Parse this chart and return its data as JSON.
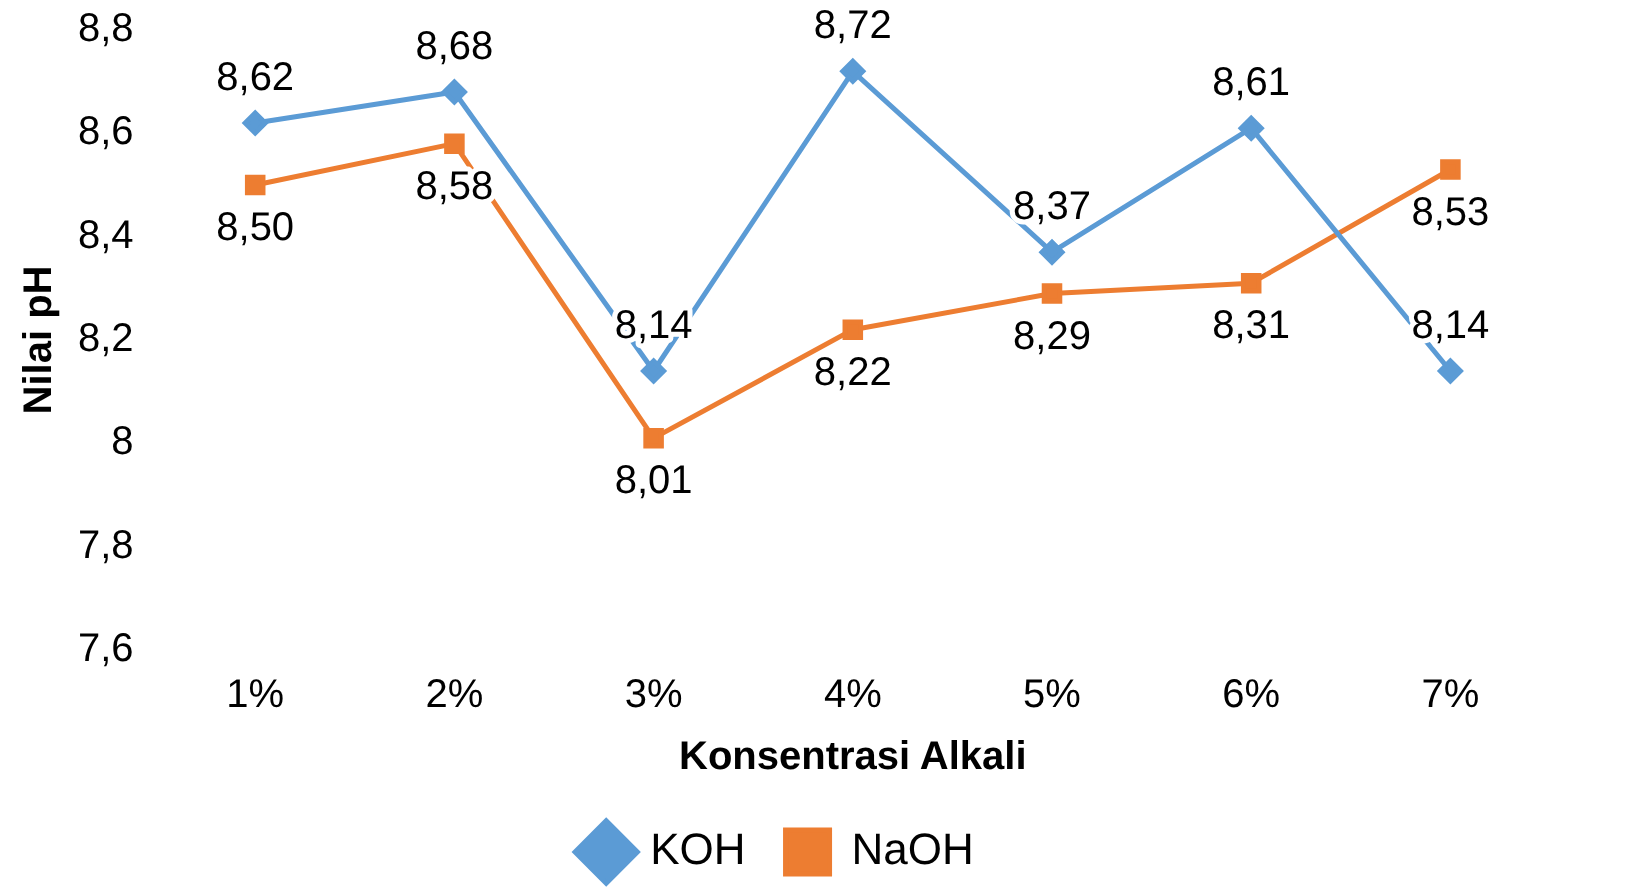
{
  "chart_data": {
    "type": "line",
    "xlabel": "Konsentrasi Alkali",
    "ylabel": "Nilai pH",
    "categories": [
      "1%",
      "2%",
      "3%",
      "4%",
      "5%",
      "6%",
      "7%"
    ],
    "series": [
      {
        "name": "KOH",
        "color": "#5b9bd5",
        "marker": "diamond",
        "values": [
          8.62,
          8.68,
          8.14,
          8.72,
          8.37,
          8.61,
          8.14
        ],
        "value_labels": [
          "8,62",
          "8,68",
          "8,14",
          "8,72",
          "8,37",
          "8,61",
          "8,14"
        ]
      },
      {
        "name": "NaOH",
        "color": "#ed7d31",
        "marker": "square",
        "values": [
          8.5,
          8.58,
          8.01,
          8.22,
          8.29,
          8.31,
          8.53
        ],
        "value_labels": [
          "8,50",
          "8,58",
          "8,01",
          "8,22",
          "8,29",
          "8,31",
          "8,53"
        ]
      }
    ],
    "ylim": [
      7.6,
      8.8
    ],
    "yticks": [
      {
        "value": 7.6,
        "label": "7,6"
      },
      {
        "value": 7.8,
        "label": "7,8"
      },
      8,
      {
        "value": 8.2,
        "label": "8,2"
      },
      {
        "value": 8.4,
        "label": "8,4"
      },
      {
        "value": 8.6,
        "label": "8,6"
      },
      {
        "value": 8.8,
        "label": "8,8"
      }
    ],
    "grid": false,
    "legend": "bottom",
    "line_style": "solid"
  }
}
